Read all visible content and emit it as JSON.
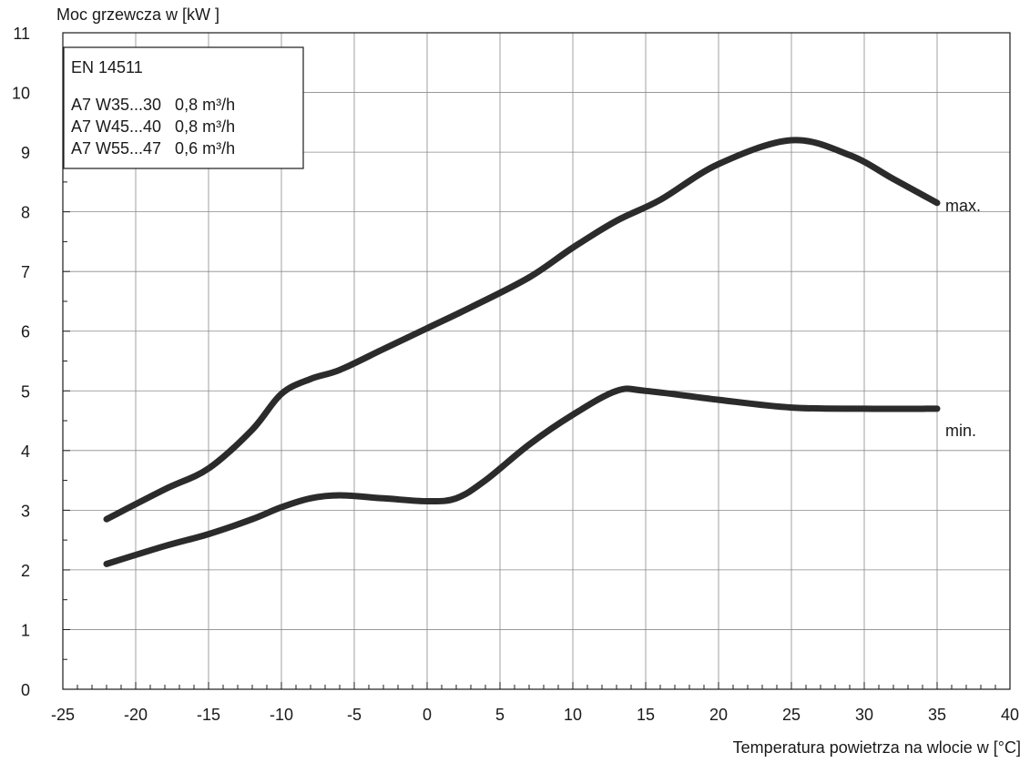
{
  "chart_data": {
    "type": "line",
    "ylabel": "Moc grzewcza w [kW ]",
    "xlabel": "Temperatura powietrza na wlocie w [°C]",
    "xlim": [
      -25,
      40
    ],
    "ylim": [
      0,
      11
    ],
    "x_ticks": [
      "-25",
      "-20",
      "-15",
      "-10",
      "-5",
      "0",
      "5",
      "10",
      "15",
      "20",
      "25",
      "30",
      "35",
      "40"
    ],
    "y_ticks": [
      "0",
      "1",
      "2",
      "3",
      "4",
      "5",
      "6",
      "7",
      "8",
      "9",
      "10",
      "11"
    ],
    "grid": true,
    "legend_box": {
      "title": "EN 14511",
      "lines": [
        "A7 W35...30   0,8 m³/h",
        "A7 W45...40   0,8 m³/h",
        "A7 W55...47   0,6 m³/h"
      ]
    },
    "series": [
      {
        "name": "max.",
        "x": [
          -22,
          -18,
          -15,
          -12,
          -10,
          -8,
          -6,
          -3,
          0,
          3,
          7,
          10,
          13,
          16,
          20,
          25,
          29,
          32,
          35
        ],
        "y": [
          2.85,
          3.35,
          3.7,
          4.35,
          4.95,
          5.2,
          5.35,
          5.7,
          6.05,
          6.4,
          6.9,
          7.4,
          7.85,
          8.2,
          8.8,
          9.2,
          8.95,
          8.55,
          8.15
        ]
      },
      {
        "name": "min.",
        "x": [
          -22,
          -18,
          -15,
          -12,
          -10,
          -8,
          -6,
          -3,
          0,
          2,
          4,
          7,
          10,
          13,
          15,
          20,
          25,
          30,
          35
        ],
        "y": [
          2.1,
          2.4,
          2.6,
          2.85,
          3.05,
          3.2,
          3.25,
          3.2,
          3.15,
          3.2,
          3.5,
          4.1,
          4.6,
          5.0,
          5.0,
          4.85,
          4.72,
          4.7,
          4.7
        ]
      }
    ]
  },
  "colors": {
    "line": "#2b2b2b",
    "grid": "#8a8a8a",
    "frame": "#1a1a1a"
  }
}
